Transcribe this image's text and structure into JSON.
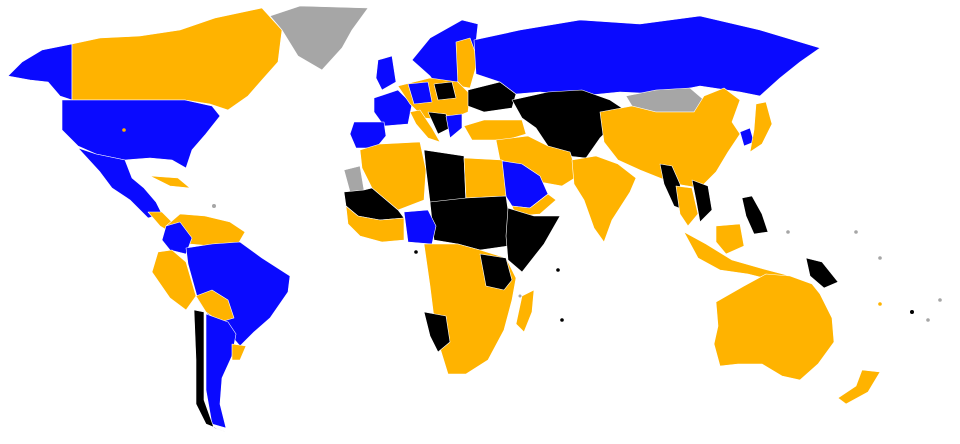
{
  "map": {
    "colors": {
      "blue": "#0a0aff",
      "orange": "#ffb300",
      "black": "#000000",
      "grey": "#a6a6a6",
      "background": "#ffffff"
    }
  }
}
